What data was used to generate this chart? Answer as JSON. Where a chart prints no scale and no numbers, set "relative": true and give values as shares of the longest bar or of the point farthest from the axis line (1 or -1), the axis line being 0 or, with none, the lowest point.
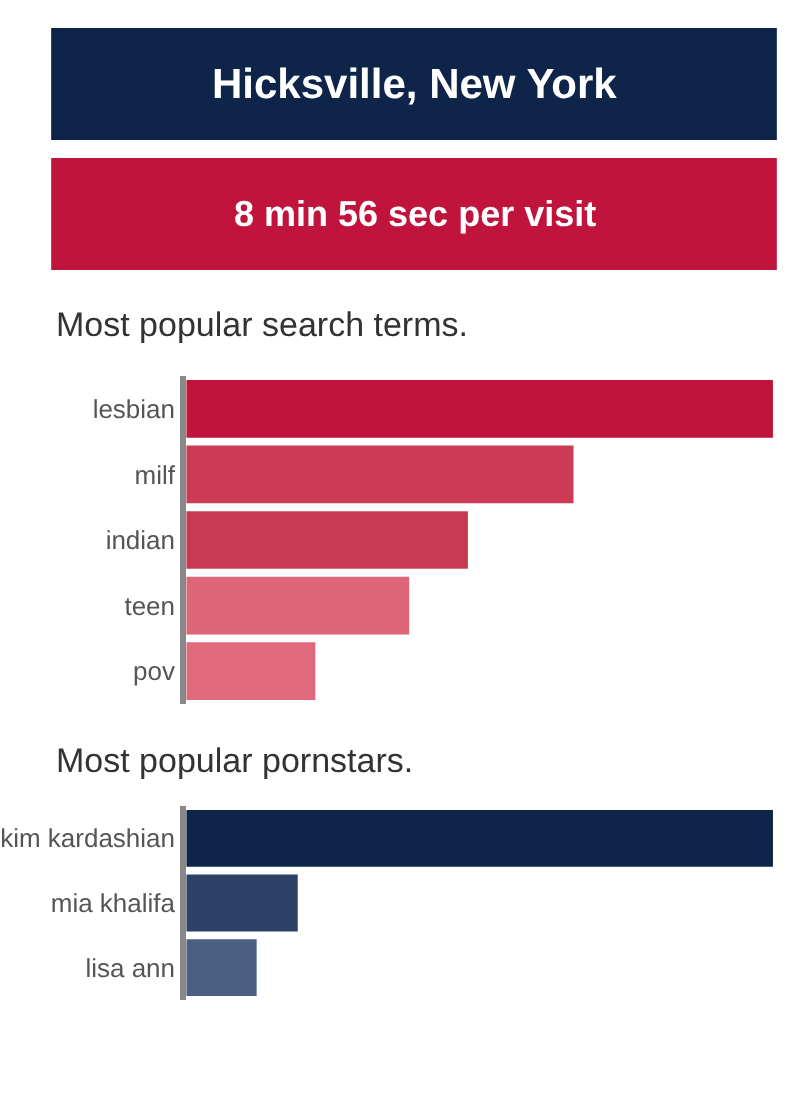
{
  "chart_data": [
    {
      "type": "other",
      "title": "Hicksville, New York",
      "subtitle": "8 min 56 sec per visit",
      "colors": [
        "#0f2449",
        "#c0143c"
      ]
    },
    {
      "type": "bar",
      "orientation": "horizontal",
      "relative": true,
      "title": "Most popular search terms.",
      "categories": [
        "lesbian",
        "milf",
        "indian",
        "teen",
        "pov"
      ],
      "values": [
        1,
        0.66,
        0.48,
        0.38,
        0.22
      ],
      "colors": [
        "#c0143c",
        "#cc3a55",
        "#c93a52",
        "#de6478",
        "#e06a7c"
      ]
    },
    {
      "type": "bar",
      "orientation": "horizontal",
      "relative": true,
      "title": "Most popular pornstars.",
      "categories": [
        "kim kardashian",
        "mia khalifa",
        "lisa ann"
      ],
      "values": [
        1,
        0.19,
        0.12
      ],
      "colors": [
        "#0f2449",
        "#2d4266",
        "#4b5f82"
      ]
    }
  ]
}
